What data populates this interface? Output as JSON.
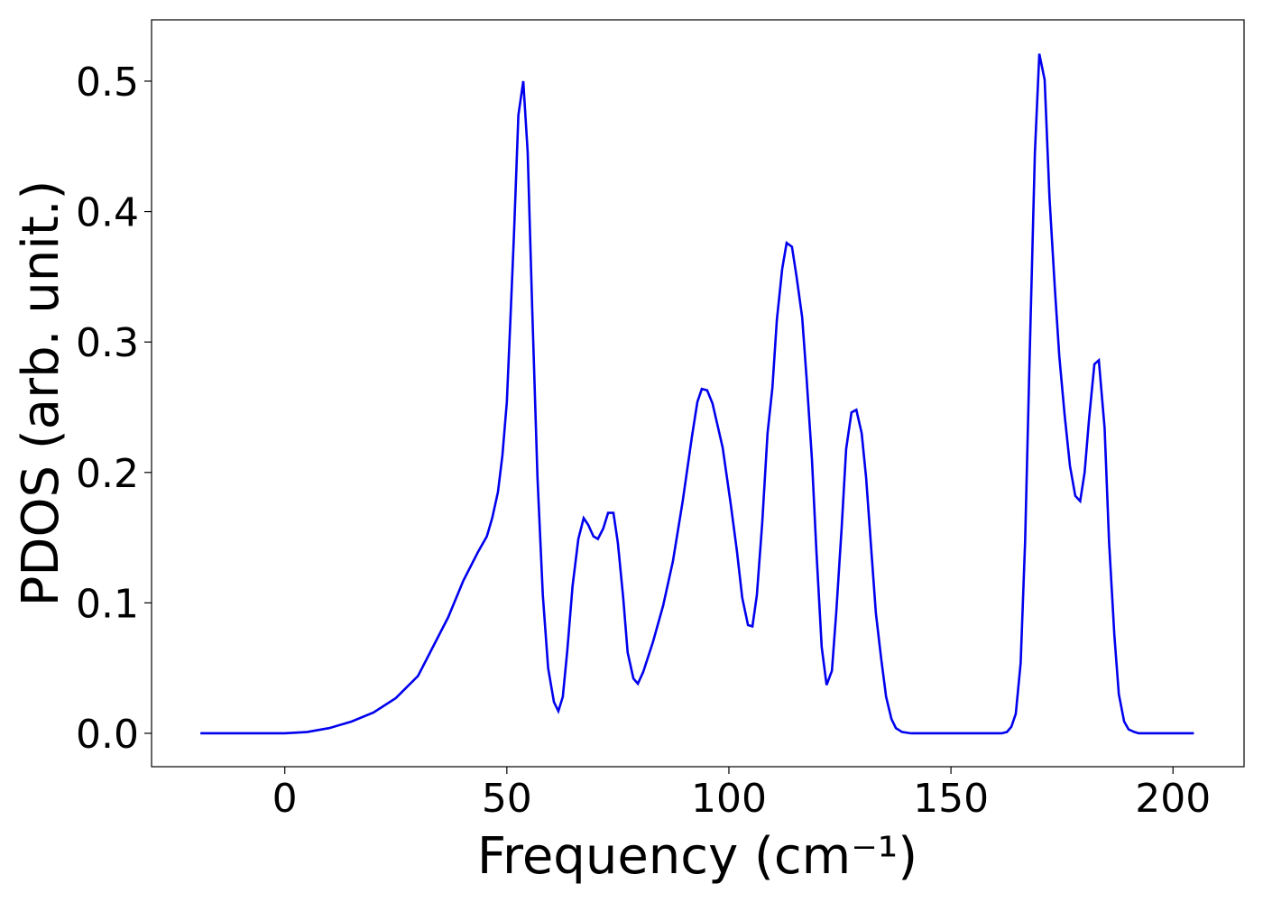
{
  "chart_data": {
    "type": "line",
    "xlabel": "Frequency (cm⁻¹)",
    "ylabel": "PDOS (arb. unit.)",
    "x": [
      -19,
      0,
      5,
      10,
      15,
      20,
      25,
      30,
      36.8,
      40.2,
      43.5,
      45.5,
      46.7,
      48,
      49,
      50,
      50.8,
      51.6,
      52.6,
      53.7,
      54.7,
      55.7,
      56.9,
      58.1,
      59.3,
      60.6,
      61.6,
      62.6,
      63.6,
      64.8,
      66.1,
      67.3,
      68.3,
      69.5,
      70.5,
      71.7,
      72.8,
      74,
      75,
      76.2,
      77.2,
      78.5,
      79.5,
      80.7,
      82.9,
      85.2,
      87.4,
      89.6,
      91.7,
      92.9,
      93.9,
      95.1,
      96.3,
      98.6,
      100.4,
      101.8,
      103,
      104.3,
      105.3,
      106.3,
      107.5,
      108.7,
      109.8,
      110.8,
      112,
      113,
      114.2,
      115.2,
      116.5,
      117.5,
      118.7,
      119.7,
      120.9,
      122,
      123.2,
      124.2,
      125.4,
      126.4,
      127.6,
      128.7,
      129.9,
      130.9,
      132.1,
      133.1,
      134.3,
      135.4,
      136.6,
      137.6,
      139,
      141,
      161.4,
      162.6,
      163.6,
      164.6,
      165.7,
      166.7,
      167.7,
      168.9,
      169.9,
      171.1,
      172.2,
      173.4,
      174.4,
      175.6,
      176.8,
      178,
      179.1,
      180.1,
      181.1,
      182.3,
      183.3,
      184.6,
      185.6,
      186.8,
      187.8,
      189,
      190,
      191.3,
      192.3,
      204.7
    ],
    "series": [
      {
        "name": "PDOS",
        "color": "#0000ee",
        "values": [
          0,
          0,
          0.001,
          0.004,
          0.009,
          0.016,
          0.027,
          0.044,
          0.089,
          0.117,
          0.139,
          0.151,
          0.165,
          0.185,
          0.213,
          0.254,
          0.317,
          0.382,
          0.474,
          0.5,
          0.445,
          0.327,
          0.196,
          0.106,
          0.05,
          0.024,
          0.017,
          0.028,
          0.063,
          0.113,
          0.149,
          0.165,
          0.16,
          0.151,
          0.149,
          0.157,
          0.169,
          0.169,
          0.146,
          0.104,
          0.062,
          0.042,
          0.038,
          0.047,
          0.07,
          0.098,
          0.132,
          0.178,
          0.228,
          0.254,
          0.264,
          0.263,
          0.253,
          0.219,
          0.176,
          0.14,
          0.104,
          0.083,
          0.082,
          0.106,
          0.161,
          0.23,
          0.265,
          0.317,
          0.356,
          0.376,
          0.373,
          0.351,
          0.319,
          0.272,
          0.21,
          0.14,
          0.066,
          0.037,
          0.048,
          0.094,
          0.158,
          0.218,
          0.246,
          0.248,
          0.23,
          0.196,
          0.139,
          0.092,
          0.057,
          0.028,
          0.011,
          0.004,
          0.001,
          0,
          0,
          0.001,
          0.005,
          0.015,
          0.054,
          0.147,
          0.286,
          0.445,
          0.521,
          0.501,
          0.41,
          0.341,
          0.289,
          0.244,
          0.205,
          0.182,
          0.178,
          0.2,
          0.241,
          0.283,
          0.286,
          0.234,
          0.147,
          0.075,
          0.03,
          0.009,
          0.003,
          0.001,
          0,
          0
        ]
      }
    ],
    "xlim": [
      -30,
      216
    ],
    "ylim": [
      -0.0256,
      0.547
    ],
    "xticks": [
      0,
      50,
      100,
      150,
      200
    ],
    "yticks": [
      {
        "value": 0,
        "label": "0.0"
      },
      {
        "value": 0.1,
        "label": "0.1"
      },
      {
        "value": 0.2,
        "label": "0.2"
      },
      {
        "value": 0.3,
        "label": "0.3"
      },
      {
        "value": 0.4,
        "label": "0.4"
      },
      {
        "value": 0.5,
        "label": "0.5"
      }
    ],
    "grid": false
  }
}
